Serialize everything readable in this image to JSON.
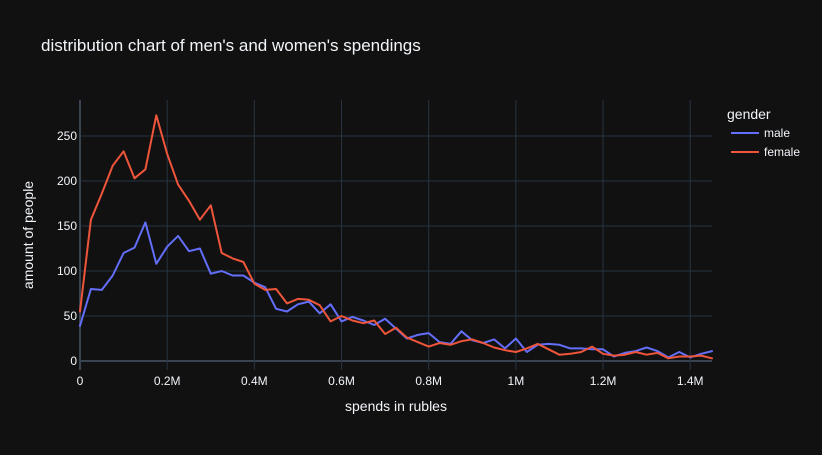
{
  "chart_data": {
    "type": "line",
    "title": "distribution chart of men's and women's spendings",
    "xlabel": "spends in rubles",
    "ylabel": "amount of people",
    "xlim": [
      0,
      1450000
    ],
    "ylim": [
      -10,
      290
    ],
    "x_ticks": [
      0,
      200000,
      400000,
      600000,
      800000,
      1000000,
      1200000,
      1400000
    ],
    "x_tick_labels": [
      "0",
      "0.2M",
      "0.4M",
      "0.6M",
      "0.8M",
      "1M",
      "1.2M",
      "1.4M"
    ],
    "y_ticks": [
      0,
      50,
      100,
      150,
      200,
      250
    ],
    "y_tick_labels": [
      "0",
      "50",
      "100",
      "150",
      "200",
      "250"
    ],
    "grid": true,
    "legend": {
      "title": "gender",
      "position": "top-right"
    },
    "series": [
      {
        "name": "male",
        "color": "#636efa",
        "x": [
          0,
          25000,
          50000,
          75000,
          100000,
          125000,
          150000,
          175000,
          200000,
          225000,
          250000,
          275000,
          300000,
          325000,
          350000,
          375000,
          400000,
          425000,
          450000,
          475000,
          500000,
          525000,
          550000,
          575000,
          600000,
          625000,
          650000,
          675000,
          700000,
          725000,
          750000,
          775000,
          800000,
          825000,
          850000,
          875000,
          900000,
          925000,
          950000,
          975000,
          1000000,
          1025000,
          1050000,
          1075000,
          1100000,
          1125000,
          1150000,
          1175000,
          1200000,
          1225000,
          1250000,
          1275000,
          1300000,
          1325000,
          1350000,
          1375000,
          1400000,
          1425000,
          1450000
        ],
        "values": [
          39,
          80,
          79,
          95,
          120,
          126,
          154,
          108,
          127,
          139,
          122,
          125,
          97,
          100,
          95,
          95,
          87,
          82,
          58,
          55,
          63,
          66,
          53,
          63,
          44,
          49,
          45,
          40,
          47,
          36,
          25,
          29,
          31,
          21,
          19,
          33,
          23,
          20,
          24,
          14,
          25,
          10,
          18,
          19,
          18,
          14,
          14,
          13,
          13,
          5,
          9,
          11,
          15,
          11,
          4,
          10,
          4,
          8,
          11
        ]
      },
      {
        "name": "female",
        "color": "#ef553b",
        "x": [
          0,
          25000,
          50000,
          75000,
          100000,
          125000,
          150000,
          175000,
          200000,
          225000,
          250000,
          275000,
          300000,
          325000,
          350000,
          375000,
          400000,
          425000,
          450000,
          475000,
          500000,
          525000,
          550000,
          575000,
          600000,
          625000,
          650000,
          675000,
          700000,
          725000,
          750000,
          775000,
          800000,
          825000,
          850000,
          875000,
          900000,
          925000,
          950000,
          975000,
          1000000,
          1025000,
          1050000,
          1075000,
          1100000,
          1125000,
          1150000,
          1175000,
          1200000,
          1225000,
          1250000,
          1275000,
          1300000,
          1325000,
          1350000,
          1375000,
          1400000,
          1425000,
          1450000
        ],
        "values": [
          55,
          157,
          186,
          217,
          233,
          203,
          213,
          273,
          230,
          196,
          178,
          157,
          173,
          120,
          114,
          110,
          86,
          79,
          80,
          64,
          69,
          68,
          62,
          44,
          50,
          45,
          42,
          45,
          30,
          37,
          26,
          21,
          16,
          20,
          18,
          22,
          24,
          20,
          15,
          12,
          10,
          14,
          19,
          13,
          7,
          8,
          10,
          16,
          8,
          6,
          7,
          10,
          7,
          9,
          3,
          5,
          5,
          6,
          3
        ]
      }
    ]
  }
}
